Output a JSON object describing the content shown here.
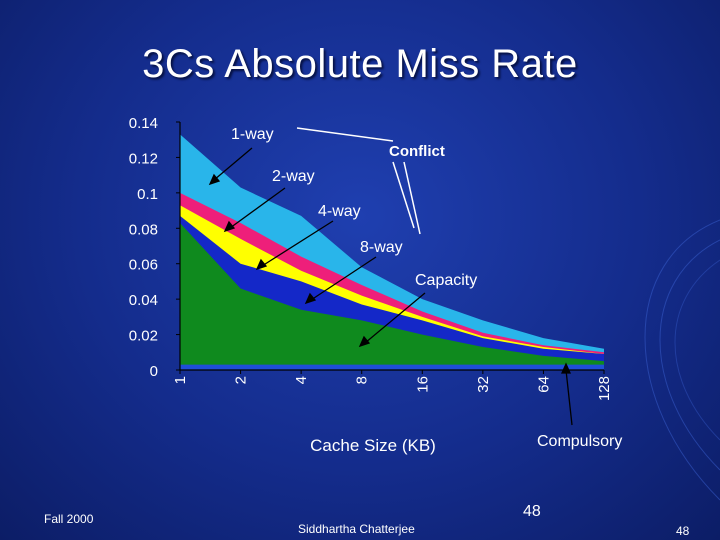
{
  "slide": {
    "title": "3Cs Absolute Miss Rate",
    "footer_left": "Fall 2000",
    "footer_center": "Siddhartha Chatterjee",
    "footer_right": "48",
    "page_number": "48"
  },
  "colors": {
    "background": "#142c8c",
    "conflict_1way": "#29b5ea",
    "conflict_2way": "#ee1f7a",
    "conflict_4way": "#ffff00",
    "conflict_8way": "#1428c8",
    "capacity": "#0f8a1e",
    "compulsory": "#1f4fd8"
  },
  "chart_data": {
    "type": "area",
    "title": "",
    "xlabel": "Cache Size (KB)",
    "ylabel": "",
    "categories": [
      "1",
      "2",
      "4",
      "8",
      "16",
      "32",
      "64",
      "128"
    ],
    "y_ticks": [
      "0.14",
      "0.12",
      "0.1",
      "0.08",
      "0.06",
      "0.04",
      "0.02",
      "0"
    ],
    "ylim": [
      0,
      0.14
    ],
    "series": [
      {
        "name": "1-way",
        "values": [
          0.133,
          0.103,
          0.087,
          0.058,
          0.04,
          0.028,
          0.018,
          0.012
        ]
      },
      {
        "name": "2-way",
        "values": [
          0.1,
          0.083,
          0.064,
          0.048,
          0.033,
          0.021,
          0.014,
          0.01
        ]
      },
      {
        "name": "4-way",
        "values": [
          0.093,
          0.074,
          0.056,
          0.042,
          0.03,
          0.019,
          0.013,
          0.009
        ]
      },
      {
        "name": "8-way",
        "values": [
          0.087,
          0.06,
          0.05,
          0.037,
          0.028,
          0.018,
          0.012,
          0.009
        ]
      },
      {
        "name": "Capacity",
        "values": [
          0.083,
          0.046,
          0.034,
          0.028,
          0.02,
          0.013,
          0.008,
          0.005
        ]
      },
      {
        "name": "Compulsory",
        "values": [
          0.003,
          0.003,
          0.003,
          0.003,
          0.003,
          0.003,
          0.003,
          0.003
        ]
      }
    ],
    "annotations": {
      "one_way": "1-way",
      "two_way": "2-way",
      "four_way": "4-way",
      "eight_way": "8-way",
      "conflict": "Conflict",
      "capacity": "Capacity",
      "compulsory": "Compulsory"
    },
    "grid": false,
    "legend": "none"
  }
}
